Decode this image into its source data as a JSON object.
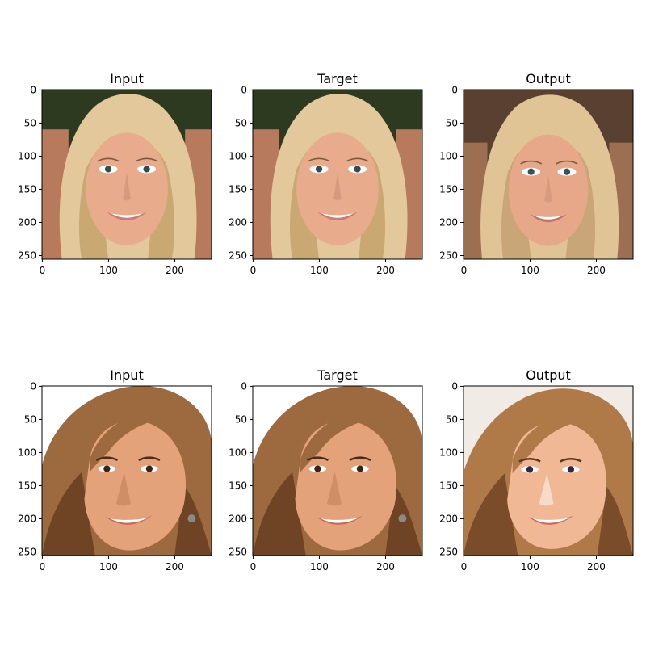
{
  "figure": {
    "rows": [
      {
        "panels": [
          {
            "title": "Input",
            "picture": "blonde-woman-face-photo"
          },
          {
            "title": "Target",
            "picture": "blonde-woman-face-photo"
          },
          {
            "title": "Output",
            "picture": "blonde-woman-face-generated"
          }
        ]
      },
      {
        "panels": [
          {
            "title": "Input",
            "picture": "brunette-woman-face-photo"
          },
          {
            "title": "Target",
            "picture": "brunette-woman-face-photo"
          },
          {
            "title": "Output",
            "picture": "brunette-woman-face-generated"
          }
        ]
      }
    ],
    "x_ticks": [
      "0",
      "100",
      "200"
    ],
    "y_ticks": [
      "0",
      "50",
      "100",
      "150",
      "200",
      "250"
    ],
    "x_tick_values": [
      0,
      100,
      200
    ],
    "y_tick_values": [
      0,
      50,
      100,
      150,
      200,
      250
    ],
    "axis_range": [
      0,
      256
    ],
    "palettes": {
      "blonde": {
        "bg_dark": "#2e3a20",
        "bg_warm": "#b87a5c",
        "hair": "#e2c89a",
        "hair_dark": "#c9a872",
        "skin": "#e8ac8c",
        "lips": "#d07a74",
        "eyes": "#3a4a4a"
      },
      "blonde_out": {
        "bg_dark": "#5a4030",
        "bg_warm": "#9c6e52",
        "hair": "#e0c496",
        "hair_dark": "#c8a678",
        "skin": "#e6a888",
        "lips": "#c9706c",
        "eyes": "#3c5058"
      },
      "brunette": {
        "bg_dark": "#ffffff",
        "bg_warm": "#f6f2ec",
        "hair": "#9c6a3e",
        "hair_dark": "#6e4424",
        "skin": "#e4a27a",
        "lips": "#c86858",
        "eyes": "#3a2416"
      },
      "brunette_out": {
        "bg_dark": "#f1ebe5",
        "bg_warm": "#e8dccf",
        "hair": "#b07a48",
        "hair_dark": "#7a4c2a",
        "skin": "#f0b894",
        "lips": "#cc6a64",
        "eyes": "#2e2a44"
      }
    }
  }
}
